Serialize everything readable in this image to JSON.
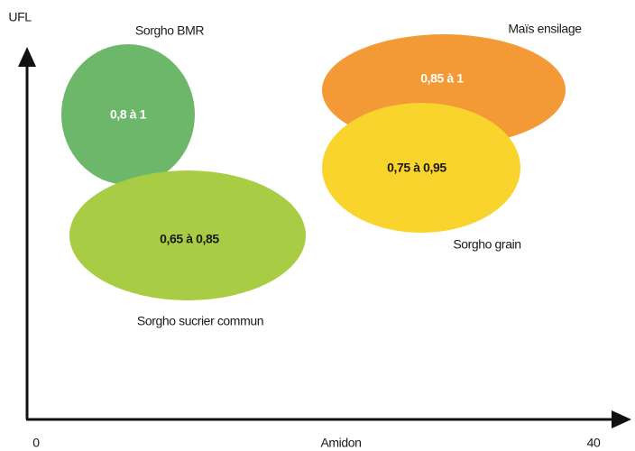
{
  "axes": {
    "y_label": "UFL",
    "x_label": "Amidon",
    "x_min": 0,
    "x_max": 40
  },
  "groups": [
    {
      "name": "Sorgho BMR",
      "value": "0,8 à 1"
    },
    {
      "name": "Sorgho sucrier commun",
      "value": "0,65 à 0,85"
    },
    {
      "name": "Maïs ensilage",
      "value": "0,85 à 1"
    },
    {
      "name": "Sorgho grain",
      "value": "0,75 à 0,95"
    }
  ]
}
